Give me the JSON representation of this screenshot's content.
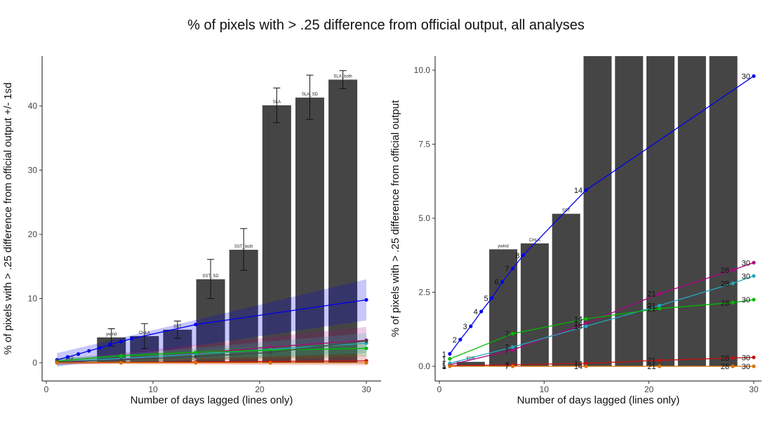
{
  "figure": {
    "title": "% of pixels with > .25 difference from official output, all analyses"
  },
  "chart_data": [
    {
      "type": "bar",
      "id": "left",
      "xlabel": "Number of days lagged (lines only)",
      "ylabel": "% of pixels with > .25 difference from official output +/- 1sd",
      "xlim": [
        0,
        31
      ],
      "ylim": [
        -2.5,
        47
      ],
      "xticks": [
        "0",
        "10",
        "20",
        "30"
      ],
      "yticks": [
        "0",
        "10",
        "20",
        "30",
        "40"
      ],
      "grid": false,
      "bars": [
        {
          "label": "EKE",
          "x": 2.2,
          "value": 0.15
        },
        {
          "label": "ywind",
          "x": 6.1,
          "value": 3.95,
          "err": [
            2.6,
            5.3
          ]
        },
        {
          "label": "CHLA",
          "x": 9.2,
          "value": 4.15,
          "err": [
            2.2,
            6.1
          ]
        },
        {
          "label": "SST",
          "x": 12.3,
          "value": 5.15,
          "err": [
            3.8,
            6.5
          ]
        },
        {
          "label": "SST_SD",
          "x": 15.4,
          "value": 13.0,
          "err": [
            10.0,
            16.1
          ]
        },
        {
          "label": "SST_both",
          "x": 18.5,
          "value": 17.6,
          "err": [
            14.4,
            20.9
          ]
        },
        {
          "label": "SLA",
          "x": 21.6,
          "value": 40.1,
          "err": [
            37.4,
            42.8
          ]
        },
        {
          "label": "SLA_SD",
          "x": 24.7,
          "value": 41.3,
          "err": [
            37.9,
            44.8
          ]
        },
        {
          "label": "SLA_both",
          "x": 27.8,
          "value": 44.1,
          "err": [
            42.7,
            45.5
          ]
        }
      ],
      "series": [
        {
          "color": "#0000ee",
          "x": [
            1,
            2,
            3,
            4,
            5,
            6,
            7,
            8,
            14,
            30
          ],
          "y": [
            0.45,
            0.9,
            1.35,
            1.85,
            2.3,
            2.85,
            3.3,
            3.75,
            5.95,
            9.8
          ],
          "band": [
            [
              1,
              1.5,
              -0.6
            ],
            [
              30,
              13.0,
              6.6
            ]
          ]
        },
        {
          "color": "#b00080",
          "x": [
            1,
            7,
            14,
            21,
            30
          ],
          "y": [
            0.05,
            0.55,
            1.45,
            2.45,
            3.5
          ],
          "band": [
            [
              1,
              0.5,
              -0.4
            ],
            [
              30,
              5.6,
              1.4
            ]
          ]
        },
        {
          "color": "#22a8c0",
          "x": [
            1,
            7,
            14,
            21,
            30
          ],
          "y": [
            0.1,
            0.65,
            1.35,
            2.05,
            3.05
          ],
          "band": [
            [
              1,
              0.5,
              -0.3
            ],
            [
              30,
              4.6,
              1.5
            ]
          ]
        },
        {
          "color": "#00bb00",
          "x": [
            1,
            7,
            14,
            21,
            30
          ],
          "y": [
            0.25,
            1.1,
            1.6,
            1.95,
            2.25
          ],
          "band": [
            [
              1,
              0.7,
              -0.2
            ],
            [
              30,
              3.5,
              1.0
            ]
          ]
        },
        {
          "color": "#444444",
          "x": [
            1,
            7,
            14,
            21,
            30
          ],
          "y": [
            0.15,
            0.45,
            0.95,
            1.6,
            3.4
          ]
        },
        {
          "color": "#c81010",
          "x": [
            1,
            7,
            14,
            21,
            30
          ],
          "y": [
            0.02,
            0.05,
            0.1,
            0.2,
            0.3
          ],
          "band": [
            [
              1,
              0.3,
              -0.2
            ],
            [
              30,
              1.3,
              -0.4
            ]
          ]
        },
        {
          "color": "#d87000",
          "x": [
            1,
            7,
            14,
            21,
            30
          ],
          "y": [
            0.0,
            0.0,
            0.0,
            0.0,
            0.0
          ]
        }
      ]
    },
    {
      "type": "bar",
      "id": "right",
      "xlabel": "Number of days lagged (lines only)",
      "ylabel": "% of pixels with > .25 difference from official output",
      "xlim": [
        0,
        31
      ],
      "ylim": [
        -0.4,
        10.5
      ],
      "xticks": [
        "0",
        "10",
        "20",
        "30"
      ],
      "yticks": [
        "0.0",
        "2.5",
        "5.0",
        "7.5",
        "10.0"
      ],
      "grid": false,
      "bars": [
        {
          "label": "EKE",
          "x": 3.0,
          "value": 0.15
        },
        {
          "label": "ywind",
          "x": 6.1,
          "value": 3.95
        },
        {
          "label": "CHLA",
          "x": 9.1,
          "value": 4.15
        },
        {
          "label": "SST",
          "x": 12.1,
          "value": 5.15
        },
        {
          "label": "",
          "x": 15.1,
          "value": 10.5
        },
        {
          "label": "",
          "x": 18.1,
          "value": 10.5
        },
        {
          "label": "",
          "x": 21.1,
          "value": 10.5
        },
        {
          "label": "",
          "x": 24.1,
          "value": 10.5
        },
        {
          "label": "",
          "x": 27.1,
          "value": 10.5
        }
      ],
      "series": [
        {
          "color": "#0000ee",
          "x": [
            1,
            2,
            3,
            4,
            5,
            6,
            7,
            8,
            14,
            30
          ],
          "y": [
            0.42,
            0.9,
            1.35,
            1.85,
            2.3,
            2.85,
            3.3,
            3.75,
            5.95,
            9.8
          ],
          "labels": [
            "1",
            "2",
            "3",
            "4",
            "5",
            "6",
            "7",
            "8",
            "14",
            "30"
          ]
        },
        {
          "color": "#b00080",
          "x": [
            1,
            7,
            14,
            21,
            28,
            30
          ],
          "y": [
            0.05,
            0.55,
            1.45,
            2.45,
            3.25,
            3.5
          ],
          "labels": [
            "1",
            "7",
            "14",
            "21",
            "28",
            "30"
          ]
        },
        {
          "color": "#22a8c0",
          "x": [
            1,
            7,
            14,
            21,
            28,
            30
          ],
          "y": [
            0.1,
            0.65,
            1.35,
            2.05,
            2.8,
            3.05
          ],
          "labels": [
            "1",
            "7",
            "14",
            "21",
            "28",
            "30"
          ]
        },
        {
          "color": "#00bb00",
          "x": [
            1,
            7,
            14,
            21,
            28,
            30
          ],
          "y": [
            0.25,
            1.1,
            1.6,
            1.95,
            2.15,
            2.25
          ],
          "labels": [
            "1",
            "7",
            "14",
            "21",
            "28",
            "30"
          ]
        },
        {
          "color": "#c81010",
          "x": [
            1,
            7,
            14,
            21,
            28,
            30
          ],
          "y": [
            0.02,
            0.05,
            0.1,
            0.2,
            0.28,
            0.3
          ],
          "labels": [
            "1",
            "7",
            "14",
            "21",
            "28",
            "30"
          ]
        },
        {
          "color": "#d87000",
          "x": [
            1,
            7,
            14,
            21,
            28,
            30
          ],
          "y": [
            0.0,
            0.0,
            0.0,
            0.0,
            0.0,
            0.0
          ],
          "labels": [
            "1",
            "7",
            "14",
            "21",
            "28",
            "30"
          ]
        }
      ]
    }
  ]
}
